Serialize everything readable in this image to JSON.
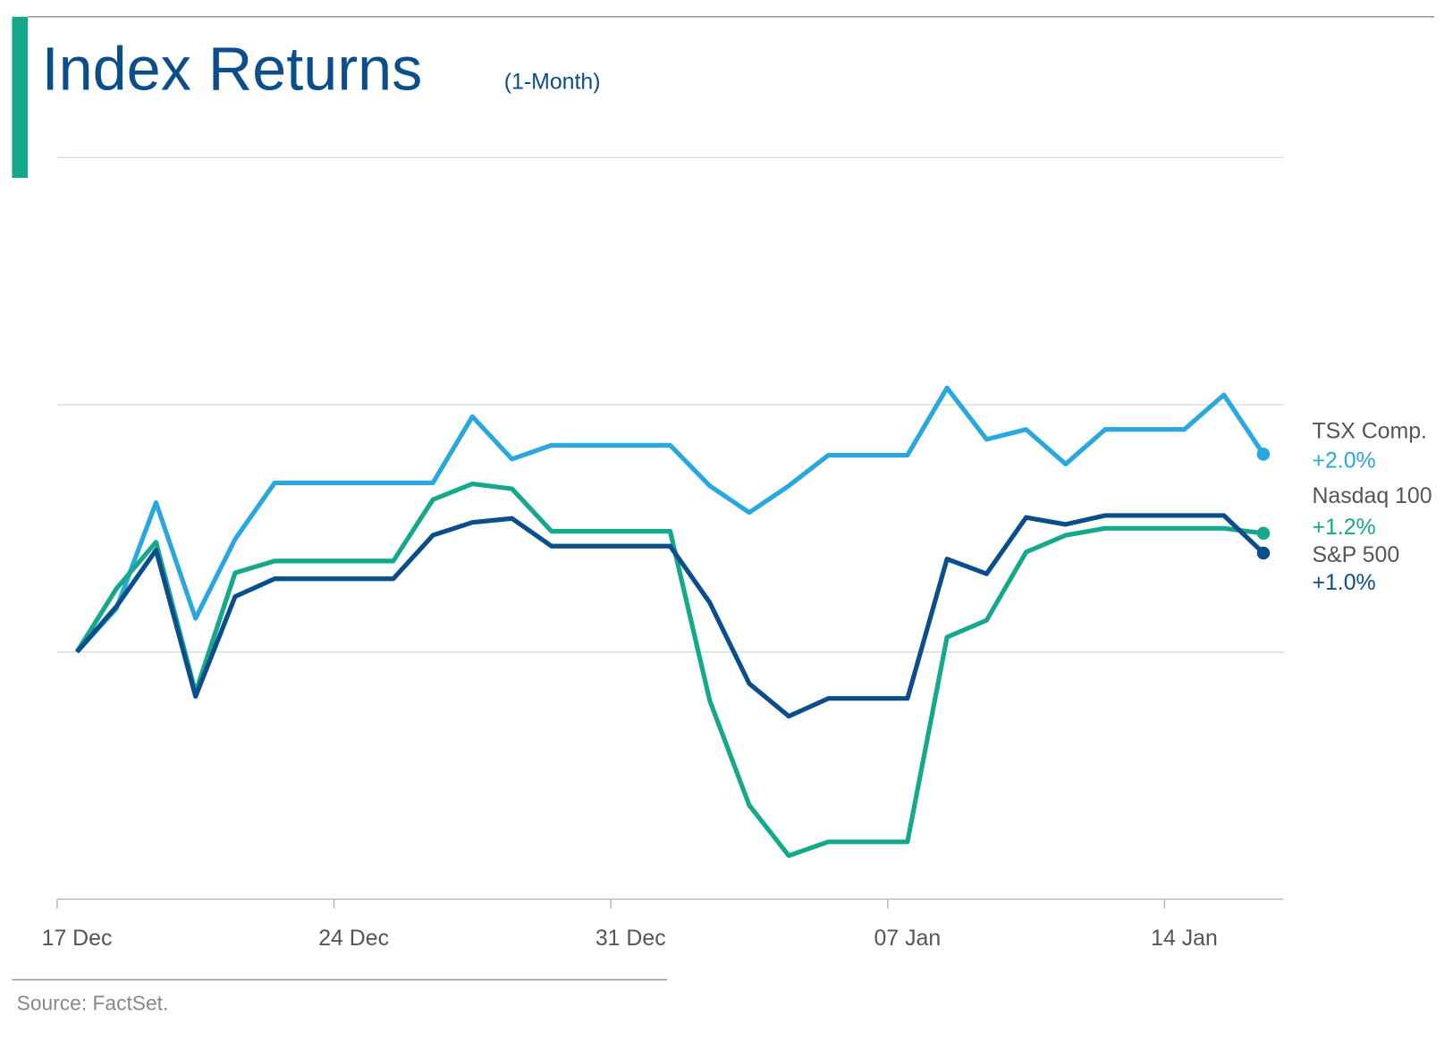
{
  "chart_data": {
    "type": "line",
    "title": "Index Returns",
    "subtitle": "(1-Month)",
    "source": "Source: FactSet.",
    "categories": [
      "17 Dec",
      null,
      null,
      null,
      null,
      null,
      null,
      "24 Dec",
      null,
      null,
      null,
      null,
      null,
      null,
      "31 Dec",
      null,
      null,
      null,
      null,
      null,
      null,
      "07 Jan",
      null,
      null,
      null,
      null,
      null,
      null,
      "14 Jan",
      null,
      null
    ],
    "ylim": [
      -2.5,
      5
    ],
    "yticks": [
      -2.5,
      0,
      2.5,
      5
    ],
    "grid": true,
    "series": [
      {
        "name": "TSX Comp.",
        "color": "#29a8e0",
        "end_label": "+2.0%",
        "values": [
          0,
          0.44,
          1.51,
          0.34,
          1.14,
          1.71,
          1.71,
          1.71,
          1.71,
          1.71,
          2.38,
          1.95,
          2.09,
          2.09,
          2.09,
          2.09,
          1.68,
          1.41,
          1.68,
          1.99,
          1.99,
          1.99,
          2.67,
          2.15,
          2.25,
          1.9,
          2.25,
          2.25,
          2.25,
          2.6,
          2.0
        ]
      },
      {
        "name": "Nasdaq 100",
        "color": "#13a98a",
        "end_label": "+1.2%",
        "values": [
          0,
          0.64,
          1.11,
          -0.41,
          0.8,
          0.92,
          0.92,
          0.92,
          0.92,
          1.54,
          1.7,
          1.65,
          1.22,
          1.22,
          1.22,
          1.22,
          -0.49,
          -1.55,
          -2.06,
          -1.92,
          -1.92,
          -1.92,
          0.15,
          0.32,
          1.01,
          1.18,
          1.25,
          1.25,
          1.25,
          1.25,
          1.2
        ]
      },
      {
        "name": "S&P 500",
        "color": "#0b4e8c",
        "end_label": "+1.0%",
        "values": [
          0,
          0.46,
          1.03,
          -0.45,
          0.56,
          0.74,
          0.74,
          0.74,
          0.74,
          1.18,
          1.31,
          1.35,
          1.07,
          1.07,
          1.07,
          1.07,
          0.5,
          -0.32,
          -0.65,
          -0.47,
          -0.47,
          -0.47,
          0.94,
          0.79,
          1.36,
          1.29,
          1.38,
          1.38,
          1.38,
          1.38,
          1.0
        ]
      }
    ]
  }
}
